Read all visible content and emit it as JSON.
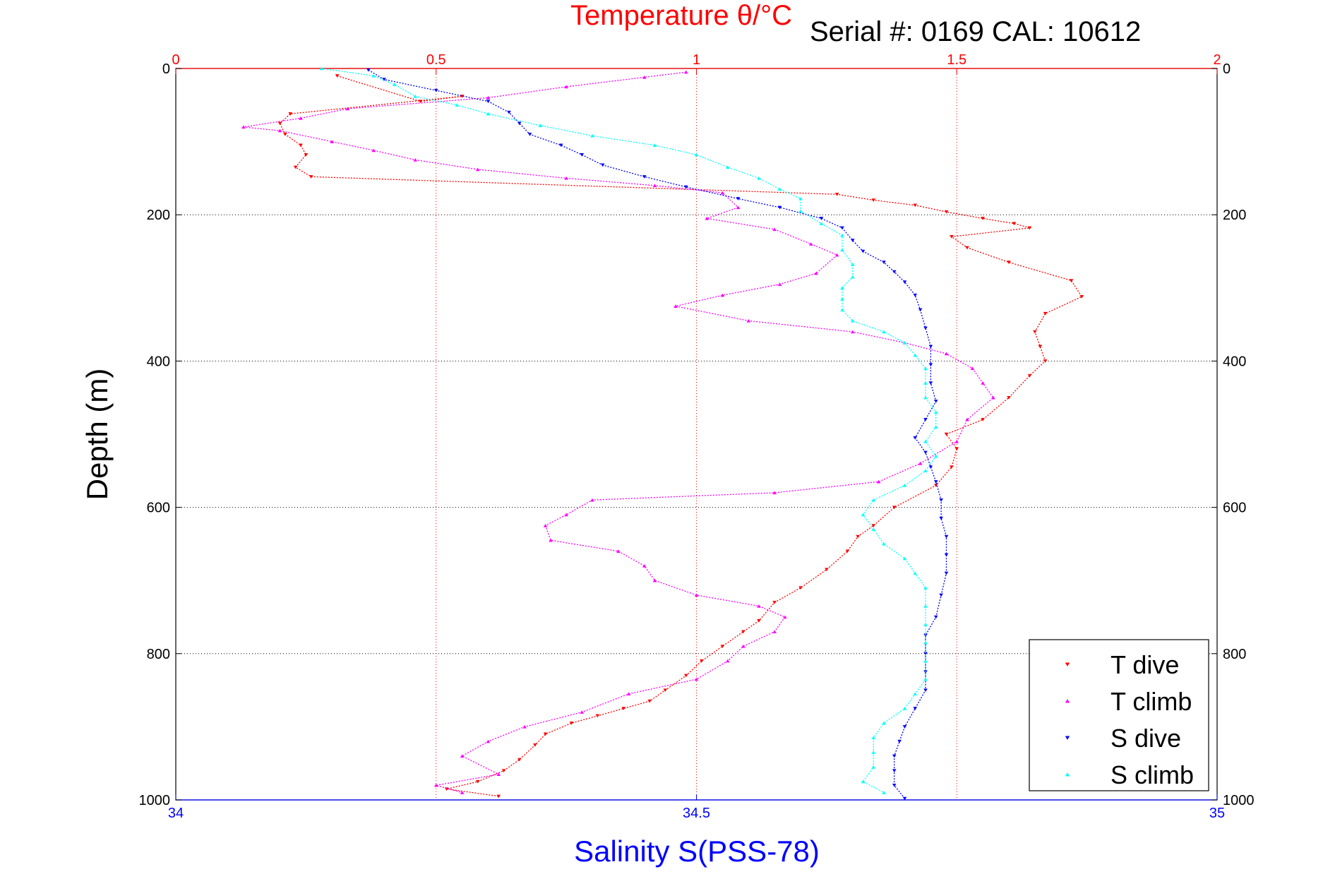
{
  "chart_data": {
    "type": "scatter",
    "title": "Temperature θ/°C",
    "subtitle": "Serial #: 0169 CAL: 10612",
    "ylabel": "Depth (m)",
    "xlabel": "Salinity S(PSS-78)",
    "top_axis": {
      "label": "Temperature θ/°C",
      "range": [
        0,
        2
      ],
      "ticks": [
        "0",
        "0.5",
        "1",
        "1.5",
        "2"
      ],
      "color": "#ff0000"
    },
    "bottom_axis": {
      "label": "Salinity S(PSS-78)",
      "range": [
        34,
        35
      ],
      "ticks": [
        "34",
        "34.5",
        "35"
      ],
      "color": "#0000ff"
    },
    "y_axis": {
      "range": [
        0,
        1000
      ],
      "reversed": true,
      "ticks": [
        "0",
        "200",
        "400",
        "600",
        "800",
        "1000"
      ]
    },
    "grid": true,
    "legend_position": "bottom-right",
    "series": [
      {
        "name": "T dive",
        "axis": "temperature",
        "color": "#ff0000",
        "marker": "triangle-down",
        "points": [
          [
            0.31,
            10
          ],
          [
            0.47,
            45
          ],
          [
            0.55,
            38
          ],
          [
            0.22,
            62
          ],
          [
            0.2,
            75
          ],
          [
            0.21,
            90
          ],
          [
            0.24,
            105
          ],
          [
            0.25,
            118
          ],
          [
            0.23,
            135
          ],
          [
            0.26,
            148
          ],
          [
            1.27,
            172
          ],
          [
            1.34,
            180
          ],
          [
            1.42,
            187
          ],
          [
            1.48,
            196
          ],
          [
            1.55,
            205
          ],
          [
            1.61,
            212
          ],
          [
            1.64,
            218
          ],
          [
            1.49,
            230
          ],
          [
            1.52,
            245
          ],
          [
            1.6,
            265
          ],
          [
            1.72,
            290
          ],
          [
            1.74,
            312
          ],
          [
            1.67,
            335
          ],
          [
            1.65,
            360
          ],
          [
            1.66,
            380
          ],
          [
            1.67,
            400
          ],
          [
            1.64,
            420
          ],
          [
            1.6,
            450
          ],
          [
            1.55,
            480
          ],
          [
            1.48,
            500
          ],
          [
            1.5,
            520
          ],
          [
            1.49,
            545
          ],
          [
            1.46,
            570
          ],
          [
            1.38,
            600
          ],
          [
            1.34,
            625
          ],
          [
            1.31,
            640
          ],
          [
            1.29,
            660
          ],
          [
            1.25,
            685
          ],
          [
            1.2,
            710
          ],
          [
            1.15,
            730
          ],
          [
            1.12,
            755
          ],
          [
            1.09,
            770
          ],
          [
            1.05,
            790
          ],
          [
            1.01,
            810
          ],
          [
            0.98,
            830
          ],
          [
            0.94,
            850
          ],
          [
            0.91,
            865
          ],
          [
            0.86,
            875
          ],
          [
            0.81,
            885
          ],
          [
            0.76,
            895
          ],
          [
            0.71,
            910
          ],
          [
            0.69,
            925
          ],
          [
            0.66,
            945
          ],
          [
            0.63,
            960
          ],
          [
            0.58,
            975
          ],
          [
            0.52,
            985
          ],
          [
            0.62,
            995
          ]
        ]
      },
      {
        "name": "T climb",
        "axis": "temperature",
        "color": "#ff00ff",
        "marker": "triangle-up",
        "points": [
          [
            0.98,
            5
          ],
          [
            0.9,
            12
          ],
          [
            0.75,
            25
          ],
          [
            0.6,
            40
          ],
          [
            0.33,
            55
          ],
          [
            0.24,
            68
          ],
          [
            0.13,
            80
          ],
          [
            0.2,
            85
          ],
          [
            0.3,
            100
          ],
          [
            0.38,
            112
          ],
          [
            0.46,
            125
          ],
          [
            0.58,
            138
          ],
          [
            0.75,
            150
          ],
          [
            0.92,
            160
          ],
          [
            1.05,
            170
          ],
          [
            1.08,
            190
          ],
          [
            1.02,
            205
          ],
          [
            1.15,
            220
          ],
          [
            1.22,
            240
          ],
          [
            1.27,
            255
          ],
          [
            1.23,
            280
          ],
          [
            1.16,
            295
          ],
          [
            1.05,
            310
          ],
          [
            0.96,
            325
          ],
          [
            1.1,
            345
          ],
          [
            1.3,
            360
          ],
          [
            1.4,
            375
          ],
          [
            1.48,
            390
          ],
          [
            1.53,
            410
          ],
          [
            1.55,
            430
          ],
          [
            1.57,
            450
          ],
          [
            1.52,
            480
          ],
          [
            1.5,
            510
          ],
          [
            1.43,
            540
          ],
          [
            1.35,
            565
          ],
          [
            1.15,
            580
          ],
          [
            0.8,
            590
          ],
          [
            0.75,
            610
          ],
          [
            0.71,
            625
          ],
          [
            0.72,
            645
          ],
          [
            0.85,
            660
          ],
          [
            0.9,
            680
          ],
          [
            0.92,
            700
          ],
          [
            1.0,
            720
          ],
          [
            1.12,
            735
          ],
          [
            1.17,
            750
          ],
          [
            1.15,
            770
          ],
          [
            1.09,
            790
          ],
          [
            1.06,
            810
          ],
          [
            1.0,
            835
          ],
          [
            0.87,
            855
          ],
          [
            0.78,
            880
          ],
          [
            0.67,
            900
          ],
          [
            0.6,
            920
          ],
          [
            0.55,
            940
          ],
          [
            0.62,
            965
          ],
          [
            0.5,
            980
          ],
          [
            0.55,
            990
          ]
        ]
      },
      {
        "name": "S dive",
        "axis": "salinity",
        "color": "#0000ff",
        "marker": "triangle-down",
        "points": [
          [
            34.185,
            2
          ],
          [
            34.2,
            15
          ],
          [
            34.25,
            30
          ],
          [
            34.3,
            45
          ],
          [
            34.32,
            60
          ],
          [
            34.33,
            75
          ],
          [
            34.34,
            90
          ],
          [
            34.37,
            105
          ],
          [
            34.39,
            118
          ],
          [
            34.41,
            132
          ],
          [
            34.45,
            148
          ],
          [
            34.49,
            162
          ],
          [
            34.54,
            178
          ],
          [
            34.58,
            190
          ],
          [
            34.62,
            205
          ],
          [
            34.64,
            218
          ],
          [
            34.65,
            235
          ],
          [
            34.66,
            250
          ],
          [
            34.68,
            265
          ],
          [
            34.69,
            278
          ],
          [
            34.7,
            292
          ],
          [
            34.71,
            310
          ],
          [
            34.715,
            330
          ],
          [
            34.72,
            355
          ],
          [
            34.725,
            380
          ],
          [
            34.725,
            405
          ],
          [
            34.725,
            430
          ],
          [
            34.73,
            455
          ],
          [
            34.72,
            480
          ],
          [
            34.71,
            505
          ],
          [
            34.72,
            525
          ],
          [
            34.725,
            545
          ],
          [
            34.73,
            565
          ],
          [
            34.735,
            590
          ],
          [
            34.735,
            615
          ],
          [
            34.74,
            640
          ],
          [
            34.74,
            665
          ],
          [
            34.74,
            690
          ],
          [
            34.735,
            720
          ],
          [
            34.73,
            750
          ],
          [
            34.72,
            775
          ],
          [
            34.72,
            800
          ],
          [
            34.72,
            825
          ],
          [
            34.72,
            850
          ],
          [
            34.71,
            875
          ],
          [
            34.7,
            900
          ],
          [
            34.695,
            920
          ],
          [
            34.69,
            940
          ],
          [
            34.69,
            960
          ],
          [
            34.69,
            980
          ],
          [
            34.7,
            998
          ]
        ]
      },
      {
        "name": "S climb",
        "axis": "salinity",
        "color": "#00ffff",
        "marker": "triangle-up",
        "points": [
          [
            34.14,
            0
          ],
          [
            34.19,
            10
          ],
          [
            34.21,
            22
          ],
          [
            34.23,
            38
          ],
          [
            34.27,
            50
          ],
          [
            34.3,
            62
          ],
          [
            34.35,
            78
          ],
          [
            34.4,
            92
          ],
          [
            34.46,
            105
          ],
          [
            34.5,
            118
          ],
          [
            34.53,
            135
          ],
          [
            34.56,
            150
          ],
          [
            34.58,
            165
          ],
          [
            34.6,
            178
          ],
          [
            34.6,
            195
          ],
          [
            34.62,
            212
          ],
          [
            34.64,
            228
          ],
          [
            34.64,
            248
          ],
          [
            34.65,
            268
          ],
          [
            34.65,
            285
          ],
          [
            34.64,
            300
          ],
          [
            34.64,
            315
          ],
          [
            34.64,
            330
          ],
          [
            34.65,
            345
          ],
          [
            34.68,
            360
          ],
          [
            34.7,
            375
          ],
          [
            34.71,
            392
          ],
          [
            34.72,
            410
          ],
          [
            34.72,
            430
          ],
          [
            34.72,
            450
          ],
          [
            34.73,
            470
          ],
          [
            34.73,
            490
          ],
          [
            34.72,
            510
          ],
          [
            34.73,
            530
          ],
          [
            34.72,
            550
          ],
          [
            34.7,
            570
          ],
          [
            34.67,
            590
          ],
          [
            34.66,
            610
          ],
          [
            34.67,
            630
          ],
          [
            34.68,
            650
          ],
          [
            34.7,
            670
          ],
          [
            34.71,
            690
          ],
          [
            34.72,
            710
          ],
          [
            34.72,
            735
          ],
          [
            34.72,
            760
          ],
          [
            34.72,
            785
          ],
          [
            34.72,
            810
          ],
          [
            34.72,
            835
          ],
          [
            34.71,
            855
          ],
          [
            34.7,
            875
          ],
          [
            34.68,
            895
          ],
          [
            34.67,
            915
          ],
          [
            34.67,
            935
          ],
          [
            34.67,
            955
          ],
          [
            34.66,
            975
          ],
          [
            34.68,
            990
          ]
        ]
      }
    ]
  }
}
